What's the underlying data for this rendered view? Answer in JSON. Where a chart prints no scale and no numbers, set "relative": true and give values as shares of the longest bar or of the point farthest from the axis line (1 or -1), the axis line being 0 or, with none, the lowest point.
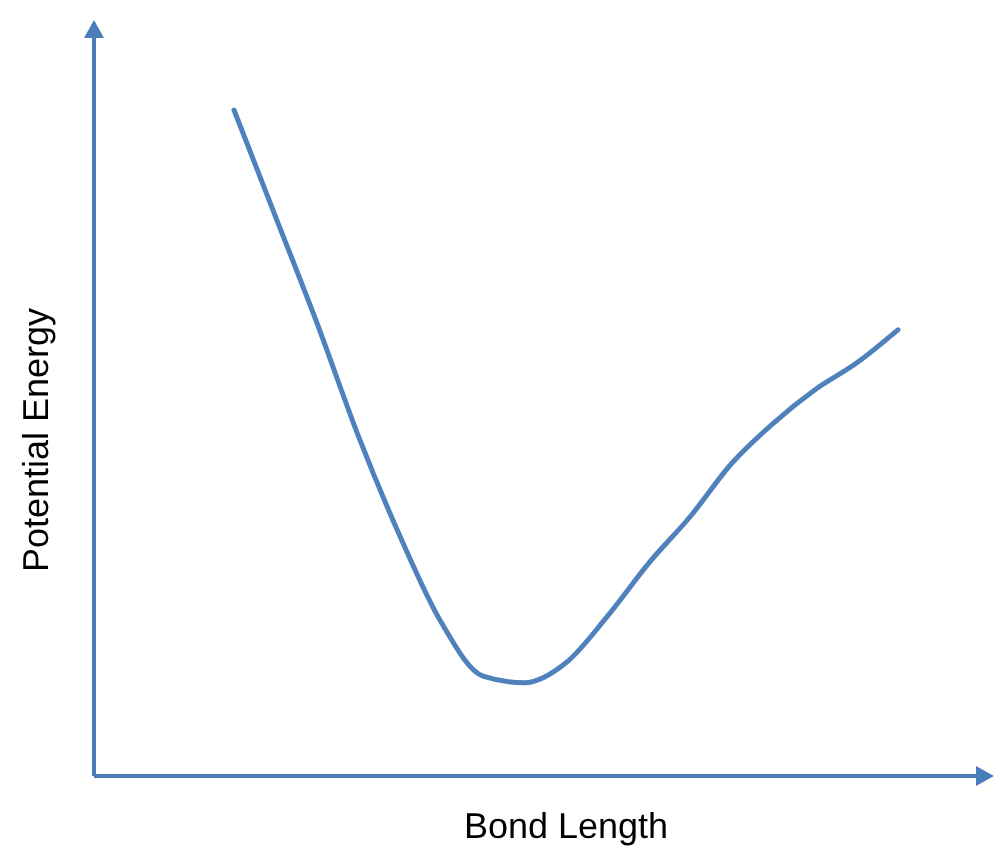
{
  "chart_data": {
    "type": "line",
    "relative": true,
    "xlabel": "Bond Length",
    "ylabel": "Potential Energy",
    "categories": [
      null,
      null,
      null,
      null,
      null,
      null,
      null,
      null,
      null,
      null,
      null,
      null,
      null,
      null,
      null,
      null,
      null
    ],
    "series": [
      {
        "color": "#4f81bd",
        "values": [
          1.0,
          0.84,
          0.68,
          0.51,
          0.36,
          0.23,
          0.15,
          0.14,
          0.17,
          0.24,
          0.32,
          0.39,
          0.47,
          0.53,
          0.58,
          0.62,
          0.67
        ]
      }
    ],
    "marker": "none",
    "line_style": "solid"
  }
}
